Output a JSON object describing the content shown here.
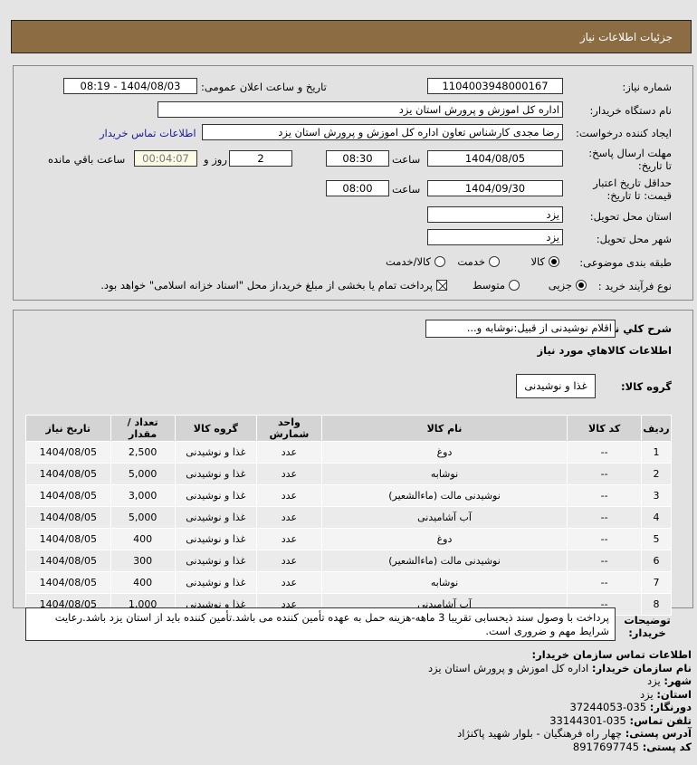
{
  "header": {
    "title": "جزئیات اطلاعات نیاز"
  },
  "form": {
    "need_number_label": "شماره نیاز:",
    "need_number": "1104003948000167",
    "announce_label": "تاریخ و ساعت اعلان عمومی:",
    "announce_value": "1404/08/03 - 08:19",
    "buyer_label": "نام دستگاه خریدار:",
    "buyer_value": "اداره کل اموزش و پرورش استان یزد",
    "creator_label": "ایجاد کننده درخواست:",
    "creator_value": "رضا مجدی کارشناس تعاون اداره کل اموزش و پرورش استان یزد",
    "contact_link": "اطلاعات تماس خریدار",
    "deadline_label": "مهلت ارسال پاسخ: تا تاریخ:",
    "deadline_date": "1404/08/05",
    "hour_label": "ساعت",
    "deadline_time": "08:30",
    "days": "2",
    "days_label": "روز و",
    "remaining": "00:04:07",
    "remaining_label": "ساعت باقي مانده",
    "validity_label": "حداقل تاریخ اعتبار قیمت: تا تاریخ:",
    "validity_date": "1404/09/30",
    "validity_time": "08:00",
    "province_label": "استان محل تحویل:",
    "province_value": "یزد",
    "city_label": "شهر محل تحویل:",
    "city_value": "یزد",
    "category_label": "طبقه بندی موضوعی:",
    "category_options": [
      {
        "label": "کالا",
        "selected": true
      },
      {
        "label": "خدمت",
        "selected": false
      },
      {
        "label": "کالا/خدمت",
        "selected": false
      }
    ],
    "process_label": "نوع فرآیند خرید :",
    "process_options": [
      {
        "label": "جزیی",
        "selected": true
      },
      {
        "label": "متوسط",
        "selected": false
      }
    ],
    "payment_note": "پرداخت تمام یا بخشی از مبلغ خرید،از محل \"اسناد خزانه اسلامی\" خواهد بود.",
    "payment_checked": true
  },
  "details": {
    "summary_label": "شرح كلي نياز:",
    "summary_value": "اقلام نوشیدنی از قبیل:نوشابه و...",
    "goods_title": "اطلاعات كالاهاي مورد نياز",
    "group_label": "گروه کالا:",
    "group_value": "غذا و نوشیدنی",
    "table": {
      "headers": [
        "ردیف",
        "کد کالا",
        "نام کالا",
        "واحد شمارش",
        "گروه کالا",
        "تعداد / مقدار",
        "تاریخ نیاز"
      ],
      "rows": [
        [
          "1",
          "--",
          "دوغ",
          "عدد",
          "غذا و نوشیدنی",
          "2,500",
          "1404/08/05"
        ],
        [
          "2",
          "--",
          "نوشابه",
          "عدد",
          "غذا و نوشیدنی",
          "5,000",
          "1404/08/05"
        ],
        [
          "3",
          "--",
          "نوشیدنی مالت (ماءالشعیر)",
          "عدد",
          "غذا و نوشیدنی",
          "3,000",
          "1404/08/05"
        ],
        [
          "4",
          "--",
          "آب آشامیدنی",
          "عدد",
          "غذا و نوشیدنی",
          "5,000",
          "1404/08/05"
        ],
        [
          "5",
          "--",
          "دوغ",
          "عدد",
          "غذا و نوشیدنی",
          "400",
          "1404/08/05"
        ],
        [
          "6",
          "--",
          "نوشیدنی مالت (ماءالشعیر)",
          "عدد",
          "غذا و نوشیدنی",
          "300",
          "1404/08/05"
        ],
        [
          "7",
          "--",
          "نوشابه",
          "عدد",
          "غذا و نوشیدنی",
          "400",
          "1404/08/05"
        ],
        [
          "8",
          "--",
          "آب آشامیدنی",
          "عدد",
          "غذا و نوشیدنی",
          "1,000",
          "1404/08/05"
        ]
      ]
    },
    "desc_label": "توضیحات خریدار:",
    "desc_value": "پرداخت با وصول سند ذیحسابی تقریبا 3 ماهه-هزینه حمل به عهده تأمین کننده می باشد.تأمین کننده باید از استان یزد باشد.رعایت شرایط مهم و ضروری است."
  },
  "contact": {
    "title": "اطلاعات تماس سازمان خریدار:",
    "items": [
      {
        "label": "نام سازمان خریدار:",
        "value": "اداره کل اموزش و پرورش استان یزد"
      },
      {
        "label": "شهر:",
        "value": "یزد"
      },
      {
        "label": "استان:",
        "value": "یزد"
      },
      {
        "label": "دورنگار:",
        "value": "035-37244053"
      },
      {
        "label": "تلفن تماس:",
        "value": "035-33144301"
      },
      {
        "label": "آدرس پستی:",
        "value": "چهار راه فرهنگیان - بلوار شهید پاکنژاد"
      },
      {
        "label": "کد پستی:",
        "value": "8917697745"
      }
    ]
  }
}
